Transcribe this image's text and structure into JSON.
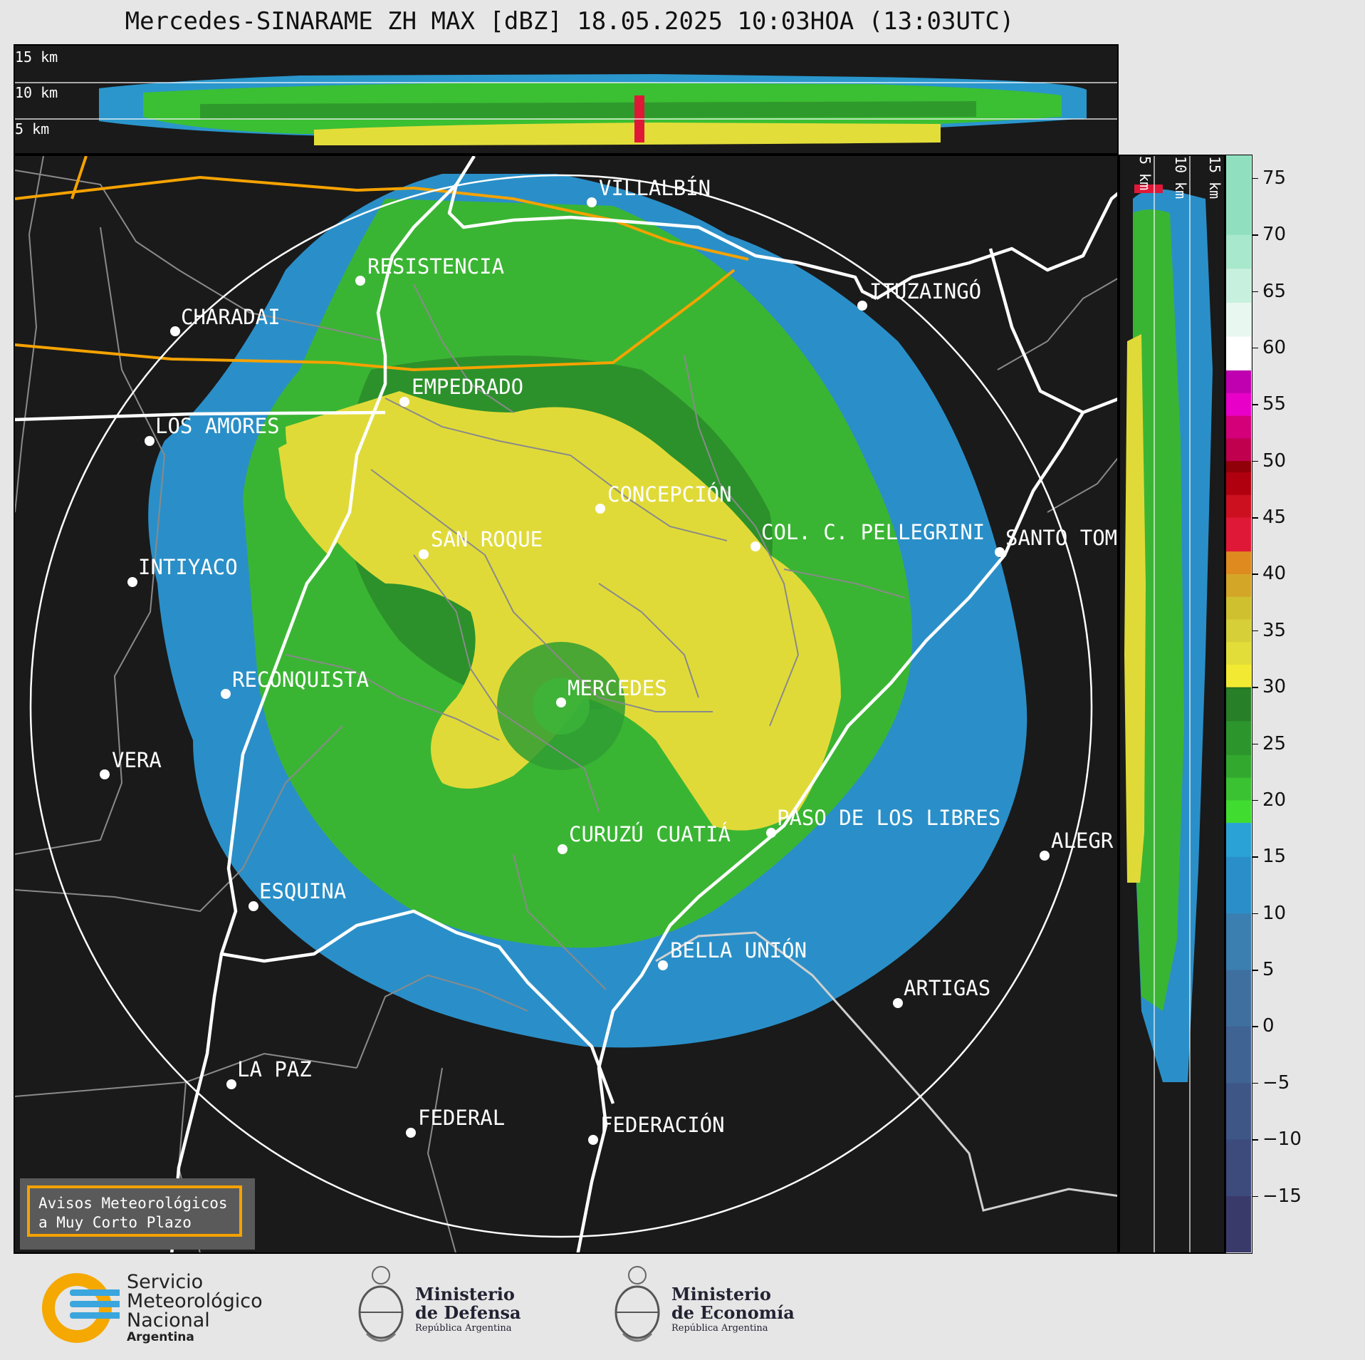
{
  "title": "Mercedes-SINARAME ZH MAX [dBZ] 18.05.2025 10:03HOA (13:03UTC)",
  "colors": {
    "background": "#1a1a1a",
    "page": "#e6e6e6",
    "province_border": "#ffffff",
    "road": "#f5a200",
    "department_border": "#888888",
    "warning_box": "#5a5a5a",
    "warning_border": "#f5a200"
  },
  "top_panel": {
    "height_labels": [
      "15 km",
      "10 km",
      "5 km"
    ]
  },
  "side_panel": {
    "height_labels": [
      "5 km",
      "10 km",
      "15 km"
    ]
  },
  "colorbar": {
    "unit": "dBZ",
    "range": [
      -20,
      77
    ],
    "tick_labels": [
      "75",
      "70",
      "65",
      "60",
      "55",
      "50",
      "45",
      "40",
      "35",
      "30",
      "25",
      "20",
      "15",
      "10",
      "5",
      "0",
      "−5",
      "−10",
      "−15"
    ],
    "tick_values": [
      75,
      70,
      65,
      60,
      55,
      50,
      45,
      40,
      35,
      30,
      25,
      20,
      15,
      10,
      5,
      0,
      -5,
      -10,
      -15
    ]
  },
  "cities": [
    {
      "name": "VILLALBÍN"
    },
    {
      "name": "RESISTENCIA"
    },
    {
      "name": "ITUZAINGÓ"
    },
    {
      "name": "CHARADAI"
    },
    {
      "name": "EMPEDRADO"
    },
    {
      "name": "LOS AMORES"
    },
    {
      "name": "CONCEPCIÓN"
    },
    {
      "name": "COL. C. PELLEGRINI"
    },
    {
      "name": "SANTO TOM"
    },
    {
      "name": "SAN ROQUE"
    },
    {
      "name": "INTIYACO"
    },
    {
      "name": "RECONQUISTA"
    },
    {
      "name": "MERCEDES"
    },
    {
      "name": "VERA"
    },
    {
      "name": "PASO DE LOS LIBRES"
    },
    {
      "name": "CURUZÚ CUATIÁ"
    },
    {
      "name": "ALEGR"
    },
    {
      "name": "ESQUINA"
    },
    {
      "name": "BELLA UNIÓN"
    },
    {
      "name": "ARTIGAS"
    },
    {
      "name": "LA PAZ"
    },
    {
      "name": "FEDERAL"
    },
    {
      "name": "FEDERACIÓN"
    }
  ],
  "warning": {
    "line1": "Avisos Meteorológicos",
    "line2": "a Muy Corto Plazo"
  },
  "logos": {
    "smn": {
      "line1": "Servicio",
      "line2": "Meteorológico",
      "line3": "Nacional",
      "line4": "Argentina"
    },
    "defensa": {
      "line1": "Ministerio",
      "line2": "de Defensa",
      "line3": "República Argentina"
    },
    "economia": {
      "line1": "Ministerio",
      "line2": "de Economía",
      "line3": "República Argentina"
    }
  }
}
